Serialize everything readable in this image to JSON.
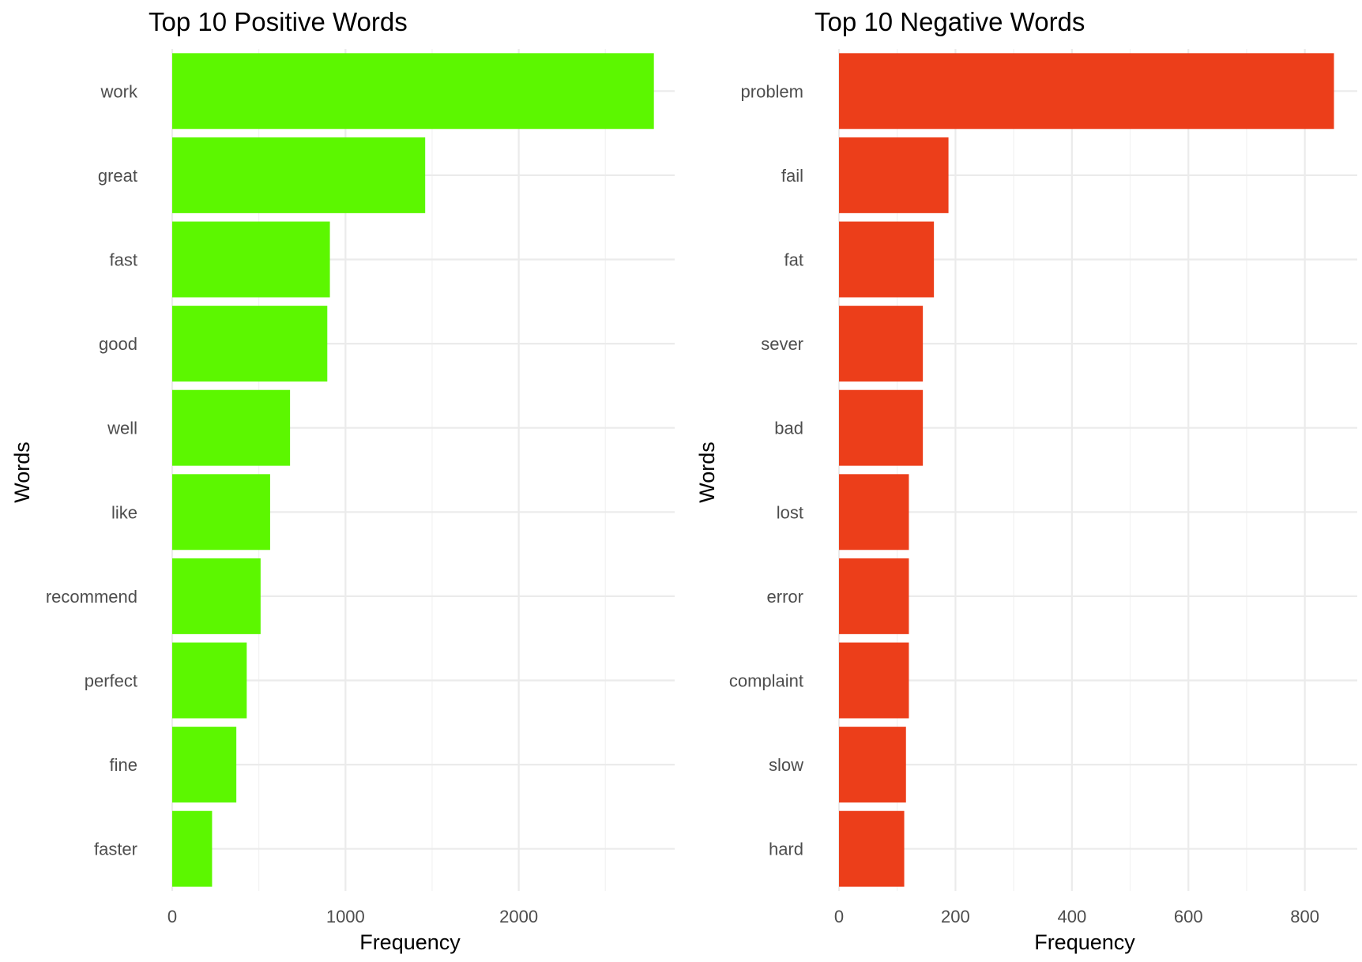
{
  "chart_data": [
    {
      "type": "bar",
      "orientation": "horizontal",
      "title": "Top 10 Positive Words",
      "xlabel": "Frequency",
      "ylabel": "Words",
      "color": "#5cf700",
      "categories": [
        "work",
        "great",
        "fast",
        "good",
        "well",
        "like",
        "recommend",
        "perfect",
        "fine",
        "faster"
      ],
      "values": [
        2780,
        1460,
        910,
        895,
        680,
        565,
        510,
        430,
        370,
        230
      ],
      "xlim": [
        0,
        2900
      ],
      "xticks": [
        0,
        1000,
        2000
      ],
      "xtick_labels": [
        "0",
        "1000",
        "2000"
      ],
      "grid": true,
      "legend": "none"
    },
    {
      "type": "bar",
      "orientation": "horizontal",
      "title": "Top 10 Negative Words",
      "xlabel": "Frequency",
      "ylabel": "Words",
      "color": "#ec3e1a",
      "categories": [
        "problem",
        "fail",
        "fat",
        "sever",
        "bad",
        "lost",
        "error",
        "complaint",
        "slow",
        "hard"
      ],
      "values": [
        850,
        188,
        163,
        144,
        144,
        120,
        120,
        120,
        115,
        112
      ],
      "xlim": [
        0,
        890
      ],
      "xticks": [
        0,
        200,
        400,
        600,
        800
      ],
      "xtick_labels": [
        "0",
        "200",
        "400",
        "600",
        "800"
      ],
      "grid": true,
      "legend": "none"
    }
  ]
}
